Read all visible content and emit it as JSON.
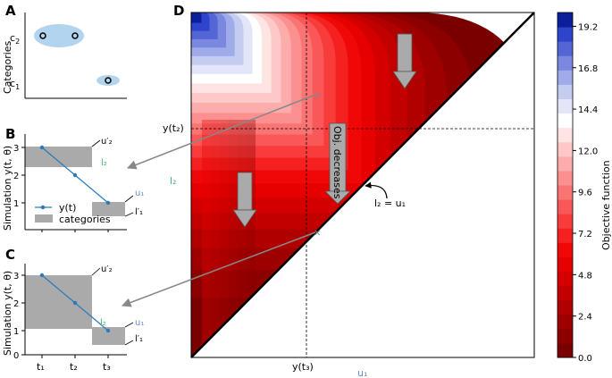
{
  "panel_letters": {
    "a": "A",
    "b": "B",
    "c": "C",
    "d": "D"
  },
  "panel_a": {
    "ylabel": "Categories",
    "cat_upper": "c",
    "cat_upper_sub": "2",
    "cat_lower": "c",
    "cat_lower_sub": "1"
  },
  "panel_b": {
    "ylabel": "Simulation y(t, θ)",
    "y_ticks": [
      "1",
      "2",
      "3"
    ],
    "series_values": [
      3,
      2,
      1
    ],
    "u2_prime": "u′₂",
    "l2": "l₂",
    "u1": "u₁",
    "l1_prime": "l′₁",
    "legend": {
      "line": "y(t)",
      "patch": "categories"
    }
  },
  "panel_c": {
    "ylabel": "Simulation y(t, θ)",
    "y_ticks": [
      "0",
      "1",
      "2",
      "3"
    ],
    "x_ticks": [
      "t₁",
      "t₂",
      "t₃"
    ],
    "series_values": [
      3,
      2,
      1
    ],
    "u2_prime": "u′₂",
    "l2": "l₂",
    "u1": "u₁",
    "l1_prime": "l′₁"
  },
  "panel_d": {
    "yt2_label": "y(t₂)",
    "yt3_label": "y(t₃)",
    "l2_axis_label": "l₂",
    "u1_axis_label": "u₁",
    "arrow_text": "Obj. decreases",
    "diagonal_label": "l₂ = u₁"
  },
  "colorbar": {
    "label": "Objective function",
    "ticks": [
      "19.2",
      "16.8",
      "14.4",
      "12.0",
      "9.6",
      "7.2",
      "4.8",
      "2.4",
      "0.0"
    ]
  },
  "colors": {
    "category_fill": "#aaaaaa",
    "line": "#2b7bba",
    "ellipse": "#b3d4ee",
    "diag": "#000000"
  }
}
